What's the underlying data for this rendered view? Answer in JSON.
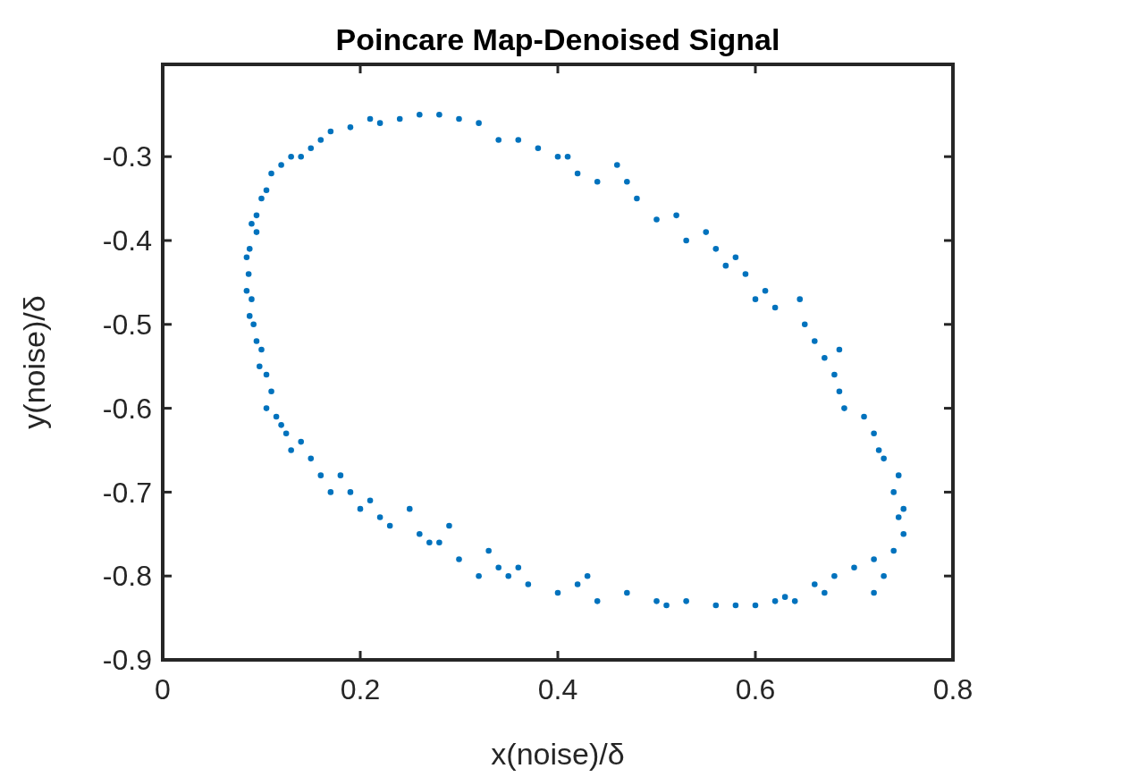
{
  "chart_data": {
    "type": "scatter",
    "title": "Poincare Map-Denoised Signal",
    "xlabel": "x(noise)/δ",
    "ylabel": "y(noise)/δ",
    "xlim": [
      0,
      0.8
    ],
    "xticks": [
      0,
      0.2,
      0.4,
      0.6,
      0.8
    ],
    "ylim": [
      -0.9,
      -0.19
    ],
    "yticks": [
      -0.9,
      -0.8,
      -0.7,
      -0.6,
      -0.5,
      -0.4,
      -0.3
    ],
    "grid": false,
    "marker": "circle",
    "series": [
      {
        "color": "#0072bd",
        "x": [
          0.12,
          0.11,
          0.105,
          0.1,
          0.095,
          0.09,
          0.095,
          0.088,
          0.085,
          0.087,
          0.085,
          0.09,
          0.088,
          0.092,
          0.095,
          0.1,
          0.098,
          0.105,
          0.11,
          0.105,
          0.115,
          0.12,
          0.125,
          0.13,
          0.14,
          0.15,
          0.16,
          0.17,
          0.18,
          0.19,
          0.2,
          0.21,
          0.22,
          0.23,
          0.25,
          0.26,
          0.27,
          0.28,
          0.29,
          0.3,
          0.32,
          0.33,
          0.34,
          0.35,
          0.36,
          0.37,
          0.4,
          0.42,
          0.43,
          0.44,
          0.47,
          0.5,
          0.51,
          0.53,
          0.56,
          0.58,
          0.6,
          0.62,
          0.63,
          0.64,
          0.66,
          0.67,
          0.68,
          0.7,
          0.72,
          0.73,
          0.72,
          0.74,
          0.75,
          0.745,
          0.75,
          0.74,
          0.745,
          0.73,
          0.725,
          0.72,
          0.71,
          0.69,
          0.685,
          0.68,
          0.685,
          0.67,
          0.66,
          0.65,
          0.645,
          0.62,
          0.61,
          0.6,
          0.59,
          0.58,
          0.57,
          0.56,
          0.55,
          0.53,
          0.52,
          0.5,
          0.48,
          0.47,
          0.46,
          0.44,
          0.42,
          0.41,
          0.4,
          0.38,
          0.36,
          0.34,
          0.32,
          0.3,
          0.28,
          0.26,
          0.24,
          0.22,
          0.21,
          0.19,
          0.17,
          0.16,
          0.15,
          0.14,
          0.13
        ],
        "values": [
          -0.31,
          -0.32,
          -0.34,
          -0.35,
          -0.37,
          -0.38,
          -0.39,
          -0.41,
          -0.42,
          -0.44,
          -0.46,
          -0.47,
          -0.49,
          -0.5,
          -0.52,
          -0.53,
          -0.55,
          -0.56,
          -0.58,
          -0.6,
          -0.61,
          -0.62,
          -0.63,
          -0.65,
          -0.64,
          -0.66,
          -0.68,
          -0.7,
          -0.68,
          -0.7,
          -0.72,
          -0.71,
          -0.73,
          -0.74,
          -0.72,
          -0.75,
          -0.76,
          -0.76,
          -0.74,
          -0.78,
          -0.8,
          -0.77,
          -0.79,
          -0.8,
          -0.79,
          -0.81,
          -0.82,
          -0.81,
          -0.8,
          -0.83,
          -0.82,
          -0.83,
          -0.835,
          -0.83,
          -0.835,
          -0.835,
          -0.835,
          -0.83,
          -0.825,
          -0.83,
          -0.81,
          -0.82,
          -0.8,
          -0.79,
          -0.82,
          -0.8,
          -0.78,
          -0.77,
          -0.75,
          -0.73,
          -0.72,
          -0.7,
          -0.68,
          -0.66,
          -0.65,
          -0.63,
          -0.61,
          -0.6,
          -0.58,
          -0.56,
          -0.53,
          -0.54,
          -0.52,
          -0.5,
          -0.47,
          -0.48,
          -0.46,
          -0.47,
          -0.44,
          -0.42,
          -0.43,
          -0.41,
          -0.39,
          -0.4,
          -0.37,
          -0.375,
          -0.35,
          -0.33,
          -0.31,
          -0.33,
          -0.32,
          -0.3,
          -0.3,
          -0.29,
          -0.28,
          -0.28,
          -0.26,
          -0.255,
          -0.25,
          -0.25,
          -0.255,
          -0.26,
          -0.255,
          -0.265,
          -0.27,
          -0.28,
          -0.29,
          -0.3,
          -0.3
        ]
      }
    ]
  }
}
